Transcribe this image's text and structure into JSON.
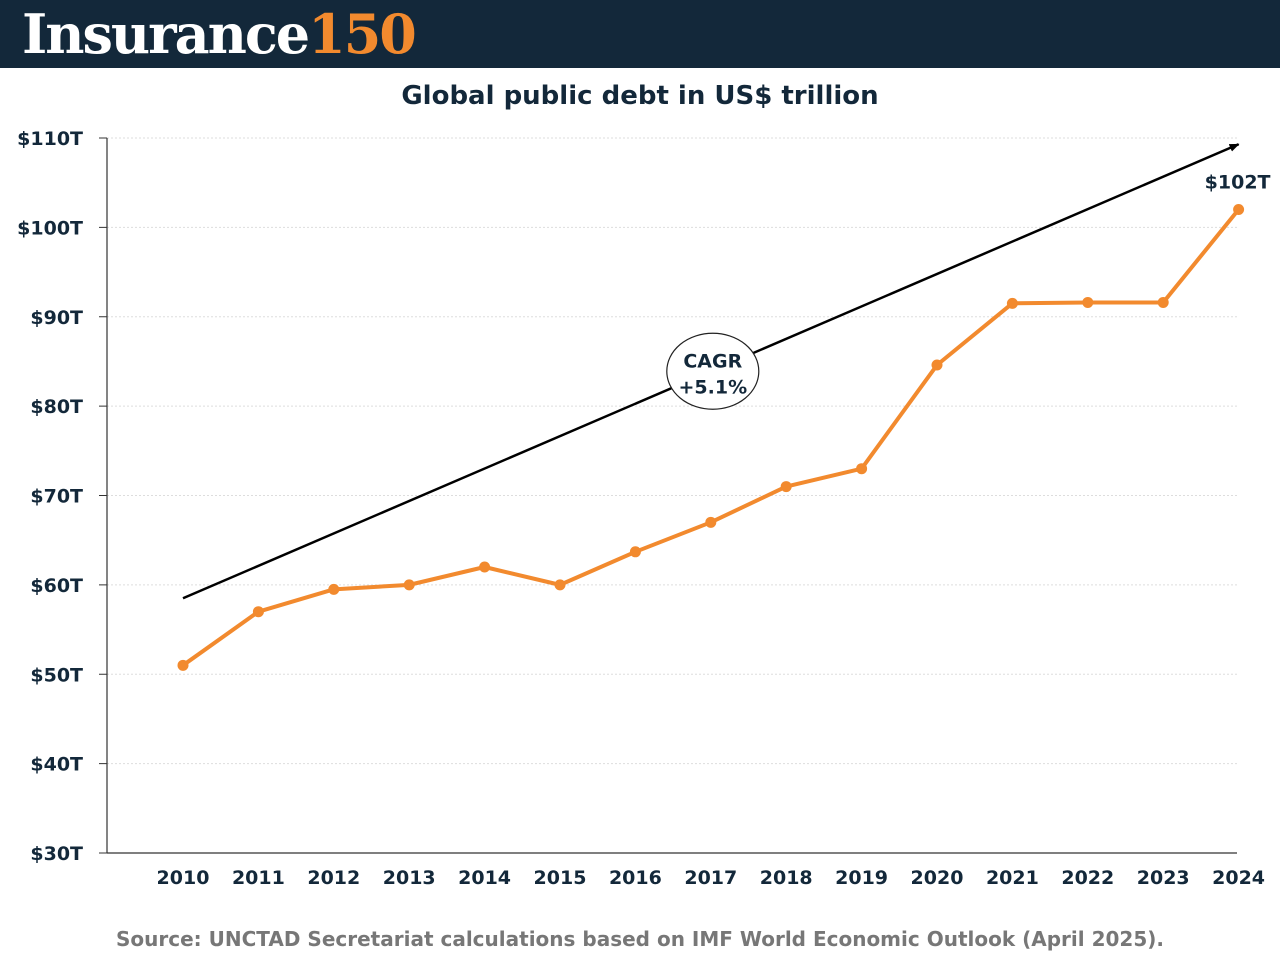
{
  "header": {
    "brand_word": "Insurance",
    "brand_number": "150",
    "bg_color": "#13283a",
    "accent_color": "#f28a2e"
  },
  "chart_data": {
    "type": "line",
    "title": "Global public debt in US$ trillion",
    "xlabel": "",
    "ylabel": "",
    "categories": [
      "2010",
      "2011",
      "2012",
      "2013",
      "2014",
      "2015",
      "2016",
      "2017",
      "2018",
      "2019",
      "2020",
      "2021",
      "2022",
      "2023",
      "2024"
    ],
    "series": [
      {
        "name": "Global public debt",
        "color": "#f28a2e",
        "values": [
          51,
          57,
          59.5,
          60,
          62,
          60,
          63.7,
          67,
          71,
          73,
          84.6,
          91.5,
          91.6,
          91.6,
          102
        ]
      }
    ],
    "ylim": [
      30,
      110
    ],
    "ytick_values": [
      30,
      40,
      50,
      60,
      70,
      80,
      90,
      100,
      110
    ],
    "ytick_labels": [
      "$30T",
      "$40T",
      "$50T",
      "$60T",
      "$70T",
      "$80T",
      "$90T",
      "$100T",
      "$110T"
    ],
    "grid": true,
    "annotations": {
      "last_value_label": "$102T",
      "trend": {
        "label_line1": "CAGR",
        "label_line2": "+5.1%",
        "start": {
          "x": "2010",
          "y": 58.5
        },
        "end": {
          "x": "2024",
          "y": 109.3
        }
      }
    }
  },
  "source": "Source: UNCTAD Secretariat calculations based on IMF World Economic Outlook (April 2025)."
}
